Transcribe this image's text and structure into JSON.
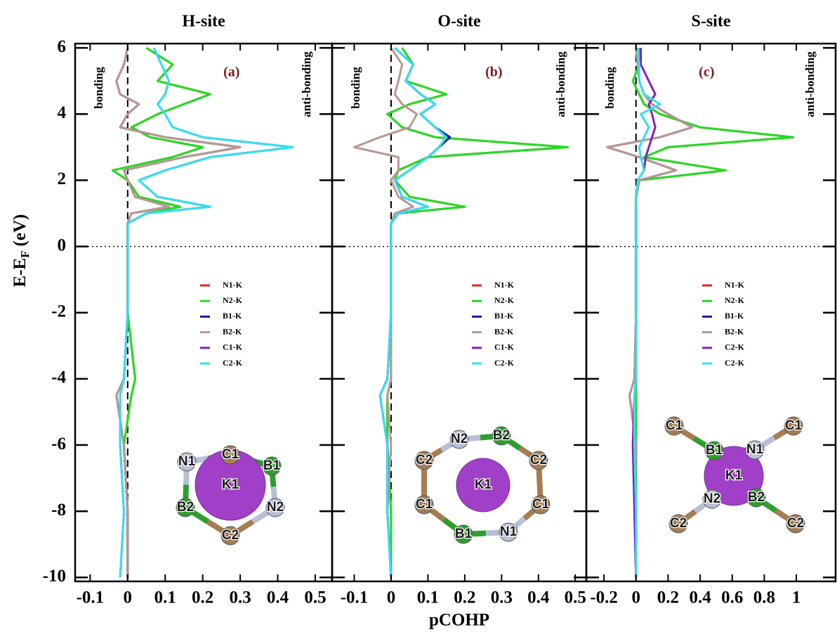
{
  "chart_data": [
    {
      "type": "line",
      "title": "H-site",
      "annotation": "(a)",
      "bonding_label": "bonding",
      "antibonding_label": "anti-bonding",
      "ylabel": "E-E",
      "ylabel_sub": "F",
      "ylabel_unit": "(eV)",
      "xlim": [
        -0.14,
        0.545
      ],
      "xticks": [
        -0.1,
        0,
        0.1,
        0.2,
        0.3,
        0.4,
        0.5
      ],
      "ylim": [
        -10.12,
        6.13
      ],
      "yticks": [
        -10,
        -8,
        -6,
        -4,
        -2,
        0,
        2,
        4,
        6
      ],
      "y": [
        -10,
        -8,
        -6,
        -4.5,
        -4,
        -2,
        0,
        0.7,
        1,
        1.2,
        1.5,
        2,
        2.3,
        2.7,
        3,
        3.3,
        3.6,
        4,
        4.3,
        4.6,
        5,
        5.5,
        6
      ],
      "series": [
        {
          "name": "N1-K",
          "color": "#e0201b",
          "values": [
            0,
            0,
            -0.01,
            0.01,
            0.02,
            0,
            0,
            0,
            0.05,
            0.14,
            0.03,
            0,
            -0.04,
            0.12,
            0.2,
            0.06,
            0.01,
            0.08,
            0.15,
            0.22,
            0.08,
            0.12,
            0.05
          ]
        },
        {
          "name": "N2-K",
          "color": "#22dd22",
          "values": [
            0,
            0,
            -0.01,
            0.01,
            0.02,
            0,
            0,
            0,
            0.05,
            0.14,
            0.03,
            0,
            -0.04,
            0.12,
            0.2,
            0.06,
            0.01,
            0.08,
            0.15,
            0.22,
            0.08,
            0.12,
            0.05
          ]
        },
        {
          "name": "B1-K",
          "color": "#1a1aa0",
          "values": [
            0,
            0,
            -0.01,
            -0.03,
            -0.01,
            0,
            0,
            0,
            0.01,
            0.11,
            0.02,
            0,
            -0.01,
            0.15,
            0.3,
            0.1,
            -0.02,
            0,
            0.03,
            -0.02,
            -0.03,
            -0.01,
            0
          ]
        },
        {
          "name": "B2-K",
          "color": "#b89890",
          "values": [
            0,
            0,
            -0.01,
            -0.03,
            -0.01,
            0,
            0,
            0,
            0.01,
            0.11,
            0.02,
            0,
            -0.01,
            0.15,
            0.3,
            0.1,
            -0.02,
            0,
            0.03,
            -0.02,
            -0.03,
            -0.01,
            0
          ]
        },
        {
          "name": "C1-K",
          "color": "#8020c0",
          "values": [
            -0.02,
            -0.01,
            -0.02,
            -0.02,
            -0.01,
            0,
            0,
            0,
            0.05,
            0.22,
            0.08,
            0.03,
            0.1,
            0.22,
            0.44,
            0.2,
            0.12,
            0.1,
            0.08,
            0.1,
            0.11,
            0.09,
            0.07
          ]
        },
        {
          "name": "C2-K",
          "color": "#33e0f0",
          "values": [
            -0.02,
            -0.01,
            -0.02,
            -0.02,
            -0.01,
            0,
            0,
            0,
            0.05,
            0.22,
            0.08,
            0.03,
            0.1,
            0.22,
            0.44,
            0.2,
            0.12,
            0.1,
            0.08,
            0.1,
            0.11,
            0.09,
            0.07
          ]
        }
      ],
      "inset_atoms": [
        "C1",
        "B1",
        "N2",
        "C2",
        "B2",
        "N1"
      ],
      "inset_center": "K1"
    },
    {
      "type": "line",
      "title": "O-site",
      "annotation": "(b)",
      "bonding_label": "bonding",
      "antibonding_label": "anti-bonding",
      "xlabel": "pCOHP",
      "xlim": [
        -0.16,
        0.53
      ],
      "xticks": [
        -0.1,
        0,
        0.1,
        0.2,
        0.3,
        0.4,
        0.5
      ],
      "ylim": [
        -10.12,
        6.13
      ],
      "y": [
        -10,
        -8,
        -6,
        -4.5,
        -4,
        -2,
        0,
        0.7,
        1,
        1.2,
        1.5,
        2,
        2.3,
        2.7,
        3,
        3.3,
        3.6,
        4,
        4.3,
        4.6,
        5,
        5.5,
        6
      ],
      "series": [
        {
          "name": "N1-K",
          "color": "#e0201b",
          "values": [
            0,
            0,
            -0.01,
            -0.01,
            0,
            0,
            0,
            0,
            0.02,
            0.2,
            0.05,
            0.01,
            0.02,
            0.1,
            0.48,
            0.12,
            0.03,
            -0.01,
            0.05,
            0.15,
            0.04,
            0.06,
            0.03
          ]
        },
        {
          "name": "N2-K",
          "color": "#22dd22",
          "values": [
            0,
            0,
            -0.01,
            -0.01,
            0,
            0,
            0,
            0,
            0.02,
            0.2,
            0.05,
            0.01,
            0.02,
            0.1,
            0.48,
            0.12,
            0.03,
            -0.01,
            0.05,
            0.15,
            0.04,
            0.06,
            0.03
          ]
        },
        {
          "name": "B1-K",
          "color": "#1a1aa0",
          "values": [
            0,
            -0.01,
            -0.01,
            -0.03,
            -0.01,
            0,
            0,
            0,
            0.02,
            0.1,
            0.03,
            0.01,
            0.05,
            0.1,
            0.13,
            0.16,
            0.12,
            0.08,
            0.12,
            0.08,
            0.04,
            0.06,
            0.01
          ]
        },
        {
          "name": "B2-K",
          "color": "#b89890",
          "values": [
            0,
            -0.01,
            0,
            -0.01,
            0,
            0,
            0,
            0,
            0.01,
            0.06,
            0.02,
            0,
            0.02,
            0.02,
            -0.1,
            -0.03,
            0.05,
            0.07,
            0.03,
            0.01,
            0.02,
            0.03,
            0
          ]
        },
        {
          "name": "C1-K",
          "color": "#8020c0",
          "values": [
            0,
            -0.01,
            -0.01,
            -0.03,
            -0.01,
            0,
            0,
            0,
            0.02,
            0.1,
            0.03,
            0.01,
            0.05,
            0.1,
            0.13,
            0.15,
            0.12,
            0.08,
            0.12,
            0.08,
            0.04,
            0.06,
            0.01
          ]
        },
        {
          "name": "C2-K",
          "color": "#33e0f0",
          "values": [
            0,
            -0.01,
            -0.01,
            -0.03,
            -0.01,
            0,
            0,
            0,
            0.02,
            0.1,
            0.03,
            0.01,
            0.05,
            0.1,
            0.13,
            0.15,
            0.12,
            0.08,
            0.12,
            0.08,
            0.04,
            0.06,
            0.01
          ]
        }
      ],
      "inset_atoms": [
        "N2",
        "B2",
        "C2",
        "C1",
        "N1",
        "B1",
        "C1",
        "C2"
      ],
      "inset_center": "K1"
    },
    {
      "type": "line",
      "title": "S-site",
      "annotation": "(c)",
      "bonding_label": "bonding",
      "antibonding_label": "anti-bonding",
      "xlim": [
        -0.31,
        1.245
      ],
      "xticks": [
        -0.2,
        0,
        0.2,
        0.4,
        0.6,
        0.8,
        1
      ],
      "ylim": [
        -10.12,
        6.13
      ],
      "y": [
        -10,
        -8,
        -6,
        -4.5,
        -4,
        -2,
        0,
        0.7,
        1,
        1.2,
        1.5,
        2,
        2.3,
        2.7,
        3,
        3.3,
        3.6,
        4,
        4.3,
        4.6,
        5,
        5.5,
        6
      ],
      "series": [
        {
          "name": "N1-K",
          "color": "#e0201b",
          "values": [
            0,
            0,
            0,
            0,
            0,
            0,
            0,
            0,
            0,
            0,
            0,
            0.02,
            0.56,
            0.05,
            0.2,
            0.98,
            0.4,
            0.15,
            0.05,
            0.02,
            -0.02,
            0.02,
            0.02
          ]
        },
        {
          "name": "N2-K",
          "color": "#22dd22",
          "values": [
            0,
            0,
            0,
            0,
            0,
            0,
            0,
            0,
            0,
            0,
            0,
            0.02,
            0.56,
            0.05,
            0.2,
            0.98,
            0.4,
            0.15,
            0.05,
            0.02,
            -0.02,
            0.02,
            0.02
          ]
        },
        {
          "name": "B1-K",
          "color": "#1a1aa0",
          "values": [
            0,
            -0.01,
            0,
            -0.04,
            -0.01,
            0,
            0,
            0,
            0,
            0,
            0,
            0.02,
            0.25,
            0.02,
            -0.18,
            0.15,
            0.35,
            0.2,
            0.1,
            0.05,
            0.02,
            0.01,
            0
          ]
        },
        {
          "name": "B2-K",
          "color": "#b89890",
          "values": [
            0,
            -0.01,
            0,
            -0.04,
            -0.01,
            0,
            0,
            0,
            0,
            0,
            0,
            0.02,
            0.25,
            0.02,
            -0.18,
            0.15,
            0.35,
            0.2,
            0.1,
            0.05,
            0.02,
            0.01,
            0
          ]
        },
        {
          "name": "C2-K",
          "color": "#8020c0",
          "values": [
            0,
            -0.01,
            -0.02,
            -0.01,
            0,
            0,
            0,
            0,
            0,
            0,
            0,
            0.01,
            0.05,
            0.06,
            0.08,
            0.1,
            0.12,
            0.1,
            0.08,
            0.12,
            0.08,
            0.03,
            0.03
          ]
        },
        {
          "name": "C2-K",
          "color": "#33e0f0",
          "values": [
            0,
            0,
            -0.01,
            -0.01,
            0,
            0,
            0,
            0,
            0,
            0,
            0,
            0.01,
            0.05,
            0.03,
            0.02,
            0.05,
            0.08,
            0.03,
            0.15,
            0.05,
            0.02,
            0.02,
            0.01
          ]
        }
      ],
      "inset_atoms": [
        "C1",
        "B1",
        "N1",
        "C1",
        "N2",
        "B2",
        "C2",
        "C2"
      ],
      "inset_center": "K1"
    }
  ]
}
